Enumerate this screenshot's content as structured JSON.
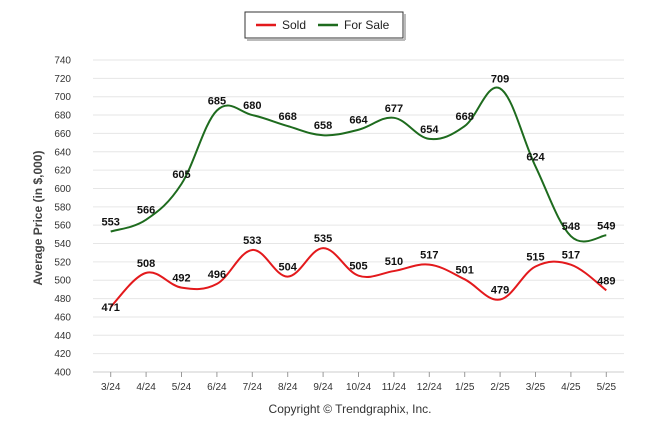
{
  "chart_data": {
    "type": "line",
    "title": "",
    "xlabel": "",
    "ylabel": "Average Price (in $,000)",
    "ylim": [
      400,
      740
    ],
    "ytick_step": 20,
    "grid": true,
    "legend_position": "top-center",
    "categories": [
      "3/24",
      "4/24",
      "5/24",
      "6/24",
      "7/24",
      "8/24",
      "9/24",
      "10/24",
      "11/24",
      "12/24",
      "1/25",
      "2/25",
      "3/25",
      "4/25",
      "5/25"
    ],
    "series": [
      {
        "name": "Sold",
        "color": "#e3191c",
        "values": [
          471,
          508,
          492,
          496,
          533,
          504,
          535,
          505,
          510,
          517,
          501,
          479,
          515,
          517,
          489
        ]
      },
      {
        "name": "For Sale",
        "color": "#1e6b1e",
        "values": [
          553,
          566,
          605,
          685,
          680,
          668,
          658,
          664,
          677,
          654,
          668,
          709,
          624,
          548,
          549
        ]
      }
    ],
    "footer": "Copyright © Trendgraphix, Inc."
  }
}
